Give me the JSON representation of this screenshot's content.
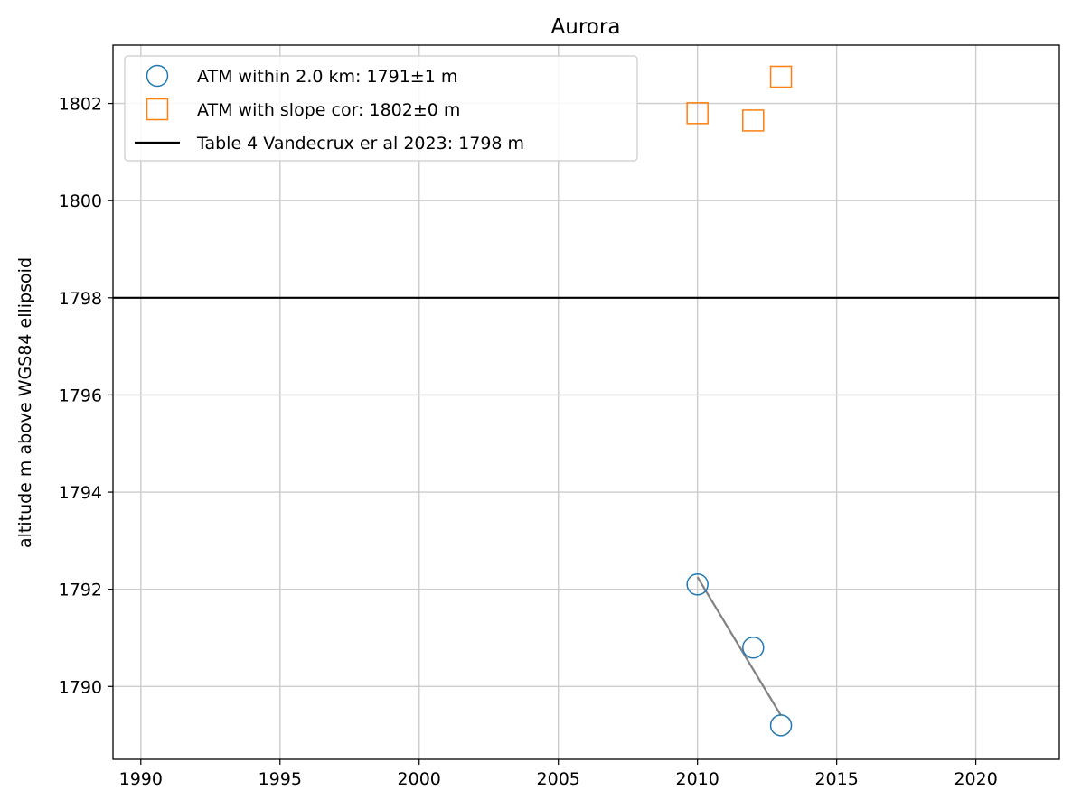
{
  "chart_data": {
    "type": "scatter",
    "title": "Aurora",
    "xlabel": "",
    "ylabel": "altitude m above WGS84 ellipsoid",
    "xlim": [
      1989,
      2023
    ],
    "ylim": [
      1788.5,
      1803.2
    ],
    "xticks": [
      1990,
      1995,
      2000,
      2005,
      2010,
      2015,
      2020
    ],
    "yticks": [
      1790,
      1792,
      1794,
      1796,
      1798,
      1800,
      1802
    ],
    "grid": true,
    "legend_position": "upper-left",
    "series": [
      {
        "name": "ATM within 2.0 km: 1791±1 m",
        "marker": "circle",
        "color": "#1f77b4",
        "x": [
          2010,
          2012,
          2013
        ],
        "y": [
          1792.1,
          1790.8,
          1789.2
        ]
      },
      {
        "name": "ATM with slope cor: 1802±0 m",
        "marker": "square",
        "color": "#ff7f0e",
        "x": [
          2010,
          2012,
          2013
        ],
        "y": [
          1801.8,
          1801.65,
          1802.55
        ]
      }
    ],
    "reference_line": {
      "name": "Table 4 Vandecrux er al 2023: 1798 m",
      "y": 1798,
      "color": "#000000"
    },
    "trend_line": {
      "color": "#808080",
      "x": [
        2010,
        2013
      ],
      "y": [
        1792.25,
        1789.4
      ]
    }
  }
}
